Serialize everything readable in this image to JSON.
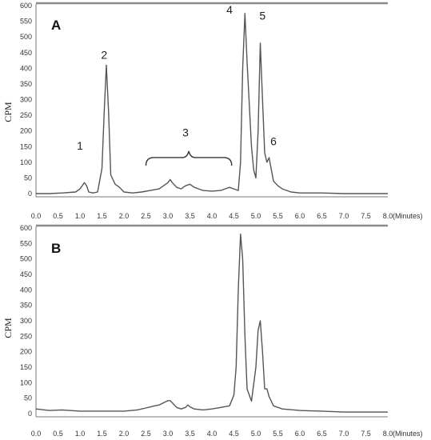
{
  "chart_data": [
    {
      "type": "line",
      "panel_label": "A",
      "ylabel": "CPM",
      "xlabel": "(Minutes)",
      "xlim": [
        0,
        8
      ],
      "ylim": [
        0,
        600
      ],
      "x_ticks": [
        "0.0",
        "0.5",
        "1.0",
        "1.5",
        "2.0",
        "2.5",
        "3.0",
        "3.5",
        "4.0",
        "4.5",
        "5.0",
        "5.5",
        "6.0",
        "6.5",
        "7.0",
        "7.5",
        "8.0"
      ],
      "y_ticks": [
        "600",
        "550",
        "500",
        "450",
        "400",
        "350",
        "300",
        "250",
        "200",
        "150",
        "100",
        "50",
        "0"
      ],
      "series": [
        {
          "x": [
            0.0,
            0.3,
            0.6,
            0.9,
            1.0,
            1.05,
            1.1,
            1.15,
            1.2,
            1.3,
            1.4,
            1.5,
            1.55,
            1.6,
            1.65,
            1.7,
            1.8,
            1.9,
            2.0,
            2.2,
            2.4,
            2.6,
            2.8,
            2.9,
            3.0,
            3.05,
            3.1,
            3.2,
            3.3,
            3.4,
            3.5,
            3.6,
            3.7,
            3.8,
            4.0,
            4.2,
            4.3,
            4.4,
            4.5,
            4.6,
            4.65,
            4.7,
            4.75,
            4.8,
            4.9,
            4.95,
            5.0,
            5.05,
            5.1,
            5.15,
            5.2,
            5.25,
            5.3,
            5.4,
            5.5,
            5.6,
            5.8,
            6.0,
            6.5,
            7.0,
            7.5,
            8.0
          ],
          "y": [
            0,
            0,
            2,
            5,
            15,
            25,
            35,
            25,
            5,
            2,
            5,
            80,
            260,
            410,
            260,
            60,
            30,
            20,
            5,
            2,
            5,
            10,
            15,
            25,
            35,
            45,
            35,
            20,
            15,
            25,
            30,
            20,
            15,
            10,
            8,
            10,
            15,
            20,
            15,
            10,
            100,
            400,
            575,
            420,
            150,
            75,
            50,
            200,
            480,
            300,
            130,
            100,
            115,
            40,
            25,
            15,
            5,
            2,
            2,
            0,
            0,
            0
          ]
        }
      ],
      "annotations": [
        {
          "text": "1",
          "x": 1.0,
          "y": 140
        },
        {
          "text": "2",
          "x": 1.55,
          "y": 430
        },
        {
          "text": "3",
          "x": 3.4,
          "y": 182
        },
        {
          "text": "4",
          "x": 4.4,
          "y": 575
        },
        {
          "text": "5",
          "x": 5.15,
          "y": 555
        },
        {
          "text": "6",
          "x": 5.4,
          "y": 155
        }
      ],
      "bracket": {
        "x_start": 2.5,
        "x_end": 4.45,
        "y": 115
      }
    },
    {
      "type": "line",
      "panel_label": "B",
      "ylabel": "CPM",
      "xlabel": "(Minutes)",
      "xlim": [
        0,
        8
      ],
      "ylim": [
        0,
        600
      ],
      "x_ticks": [
        "0.0",
        "0.5",
        "1.0",
        "1.5",
        "2.0",
        "2.5",
        "3.0",
        "3.5",
        "4.0",
        "4.5",
        "5.0",
        "5.5",
        "6.0",
        "6.5",
        "7.0",
        "7.5",
        "8.0"
      ],
      "y_ticks": [
        "600",
        "550",
        "500",
        "450",
        "400",
        "350",
        "300",
        "250",
        "200",
        "150",
        "100",
        "50",
        "0"
      ],
      "series": [
        {
          "x": [
            0.0,
            0.3,
            0.6,
            1.0,
            1.5,
            2.0,
            2.3,
            2.5,
            2.7,
            2.8,
            2.9,
            3.0,
            3.05,
            3.1,
            3.2,
            3.3,
            3.4,
            3.45,
            3.5,
            3.6,
            3.8,
            4.0,
            4.2,
            4.4,
            4.5,
            4.55,
            4.6,
            4.65,
            4.7,
            4.75,
            4.8,
            4.9,
            5.0,
            5.05,
            5.1,
            5.15,
            5.2,
            5.25,
            5.3,
            5.4,
            5.6,
            6.0,
            6.5,
            7.0,
            7.5,
            8.0
          ],
          "y": [
            15,
            10,
            12,
            8,
            8,
            8,
            12,
            18,
            25,
            28,
            35,
            42,
            42,
            35,
            20,
            15,
            20,
            28,
            22,
            15,
            12,
            15,
            20,
            25,
            60,
            150,
            400,
            580,
            500,
            250,
            80,
            40,
            150,
            270,
            300,
            200,
            80,
            80,
            55,
            25,
            15,
            10,
            8,
            5,
            5,
            5
          ]
        }
      ]
    }
  ]
}
